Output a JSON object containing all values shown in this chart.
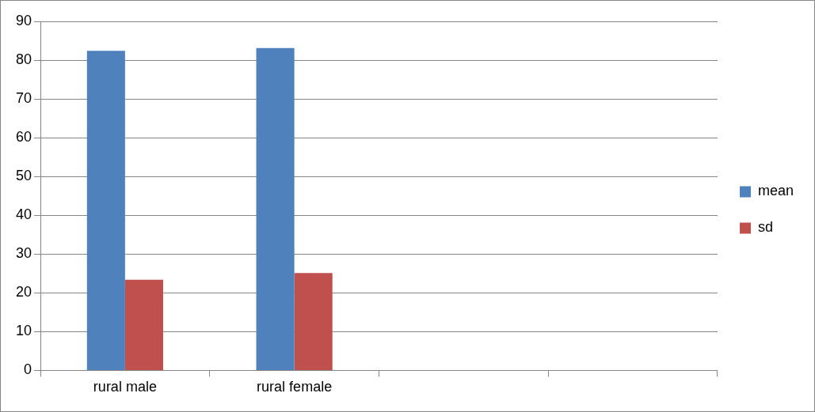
{
  "chart_data": {
    "type": "bar",
    "categories": [
      "rural male",
      "rural female",
      null,
      null
    ],
    "series": [
      {
        "name": "mean",
        "color": "#4f81bd",
        "values": [
          82.4,
          83.1,
          null,
          null
        ]
      },
      {
        "name": "sd",
        "color": "#c0504d",
        "values": [
          23.4,
          25.1,
          null,
          null
        ]
      }
    ],
    "ylim": [
      0,
      90
    ],
    "yticks": [
      0,
      10,
      20,
      30,
      40,
      50,
      60,
      70,
      80,
      90
    ],
    "grid": "y",
    "legend": "right"
  }
}
